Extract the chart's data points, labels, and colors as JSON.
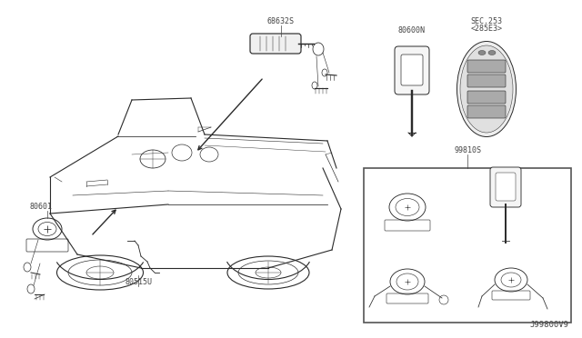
{
  "bg_color": "#ffffff",
  "dc": "#2a2a2a",
  "lc": "#444444",
  "fig_width": 6.4,
  "fig_height": 3.72,
  "dpi": 100,
  "labels": {
    "part1": "68632S",
    "part2": "80601",
    "part3": "80515U",
    "part4": "80600N",
    "part5_l1": "SEC.253",
    "part5_l2": "<285E3>",
    "part6": "99810S",
    "watermark": "J99800V9"
  }
}
